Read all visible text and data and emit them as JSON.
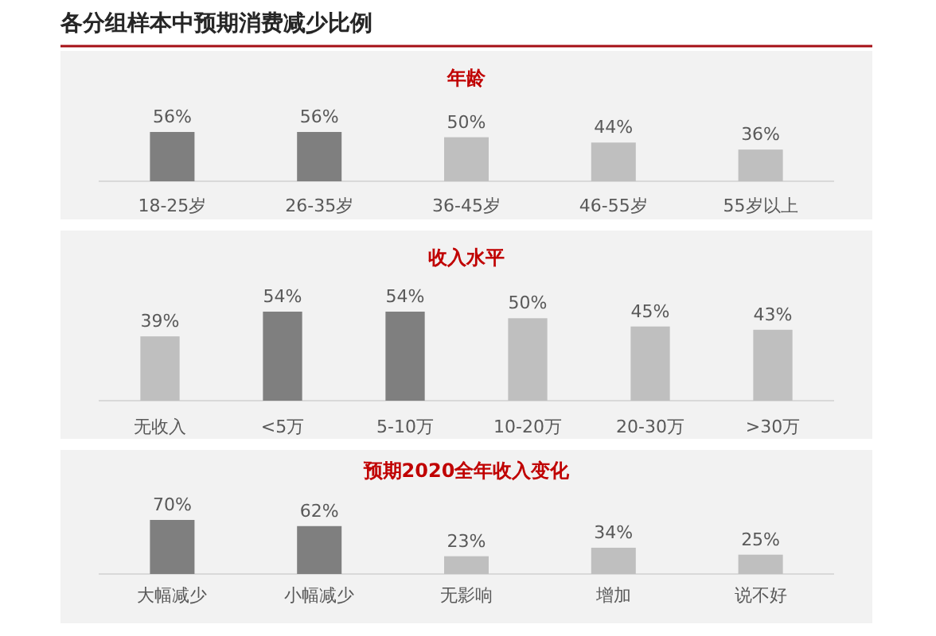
{
  "chart_data": [
    {
      "type": "bar",
      "title": "各分组样本中预期消费减少比例",
      "subtitle": "年龄",
      "categories": [
        "18-25岁",
        "26-35岁",
        "36-45岁",
        "46-55岁",
        "55岁以上"
      ],
      "values": [
        56,
        56,
        50,
        44,
        36
      ],
      "colors": [
        "#7f7f7f",
        "#7f7f7f",
        "#bfbfbf",
        "#bfbfbf",
        "#bfbfbf"
      ],
      "value_labels": [
        "56%",
        "56%",
        "50%",
        "44%",
        "36%"
      ]
    },
    {
      "type": "bar",
      "title": "收入水平",
      "categories": [
        "无收入",
        "<5万",
        "5-10万",
        "10-20万",
        "20-30万",
        ">30万"
      ],
      "values": [
        39,
        54,
        54,
        50,
        45,
        43
      ],
      "colors": [
        "#bfbfbf",
        "#7f7f7f",
        "#7f7f7f",
        "#bfbfbf",
        "#bfbfbf",
        "#bfbfbf"
      ],
      "value_labels": [
        "39%",
        "54%",
        "54%",
        "50%",
        "45%",
        "43%"
      ]
    },
    {
      "type": "bar",
      "title": "预期2020全年收入变化",
      "categories": [
        "大幅减少",
        "小幅减少",
        "无影响",
        "增加",
        "说不好"
      ],
      "values": [
        70,
        62,
        23,
        34,
        25
      ],
      "colors": [
        "#7f7f7f",
        "#7f7f7f",
        "#bfbfbf",
        "#bfbfbf",
        "#bfbfbf"
      ],
      "value_labels": [
        "70%",
        "62%",
        "23%",
        "34%",
        "25%"
      ]
    }
  ]
}
